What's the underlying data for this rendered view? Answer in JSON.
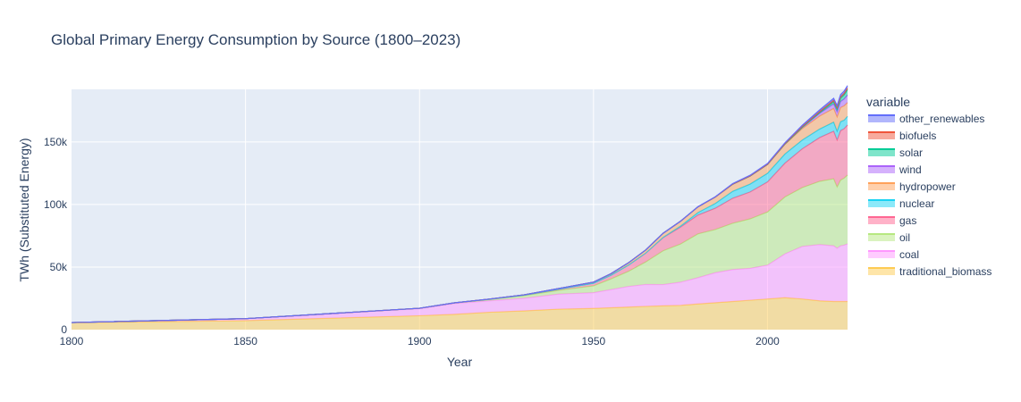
{
  "chart_data": {
    "type": "area",
    "title": "Global Primary Energy Consumption by Source (1800–2023)",
    "xlabel": "Year",
    "ylabel": "TWh (Substituted Energy)",
    "xlim": [
      1800,
      2023
    ],
    "ylim": [
      0,
      192000
    ],
    "x_ticks": [
      1800,
      1850,
      1900,
      1950,
      2000
    ],
    "y_ticks": [
      0,
      50000,
      100000,
      150000
    ],
    "y_tick_labels": [
      "0",
      "50k",
      "100k",
      "150k"
    ],
    "legend_title": "variable",
    "legend_position": "right",
    "stacked": true,
    "x": [
      1800,
      1850,
      1900,
      1910,
      1920,
      1930,
      1940,
      1950,
      1955,
      1960,
      1965,
      1970,
      1975,
      1980,
      1985,
      1990,
      1995,
      2000,
      2005,
      2010,
      2015,
      2019,
      2020,
      2021,
      2022,
      2023
    ],
    "series": [
      {
        "name": "traditional_biomass",
        "color": "#FECB52",
        "values": [
          5556,
          7222,
          11111,
          12222,
          13889,
          15000,
          16389,
          16944,
          17500,
          18000,
          18600,
          19000,
          19400,
          20500,
          21500,
          22500,
          23500,
          24500,
          25500,
          24500,
          23000,
          22500,
          22500,
          22500,
          22500,
          22500
        ]
      },
      {
        "name": "coal",
        "color": "#FF97FF",
        "values": [
          97,
          1569,
          5728,
          8616,
          9120,
          10086,
          11980,
          12603,
          14500,
          16500,
          17500,
          17000,
          18500,
          21000,
          24000,
          25500,
          25500,
          27000,
          35000,
          42000,
          45000,
          44500,
          42500,
          44500,
          45000,
          46000
        ]
      },
      {
        "name": "oil",
        "color": "#B6E880",
        "values": [
          0,
          0,
          181,
          382,
          1026,
          1969,
          3060,
          5444,
          8500,
          12000,
          18000,
          27000,
          30500,
          35000,
          34500,
          37000,
          39500,
          42500,
          45500,
          47000,
          50500,
          53500,
          49000,
          52500,
          53500,
          55000
        ]
      },
      {
        "name": "gas",
        "color": "#FF6692",
        "values": [
          0,
          0,
          64,
          150,
          250,
          500,
          950,
          2092,
          3000,
          5000,
          7000,
          10500,
          13500,
          15000,
          17000,
          20000,
          21500,
          24000,
          27000,
          31000,
          35000,
          38000,
          37500,
          39500,
          39500,
          40000
        ]
      },
      {
        "name": "nuclear",
        "color": "#19D3F3",
        "values": [
          0,
          0,
          0,
          0,
          0,
          0,
          0,
          0,
          0,
          15,
          50,
          200,
          800,
          2000,
          3800,
          5500,
          6300,
          6900,
          7300,
          7000,
          6800,
          7300,
          7000,
          7200,
          6800,
          6900
        ]
      },
      {
        "name": "hydropower",
        "color": "#FFA15A",
        "values": [
          0,
          0,
          10,
          40,
          120,
          250,
          450,
          900,
          1200,
          1800,
          2500,
          3300,
          3900,
          4600,
          5200,
          5700,
          6400,
          7000,
          7700,
          9200,
          10400,
          11000,
          11500,
          11300,
          11500,
          11000
        ]
      },
      {
        "name": "wind",
        "color": "#AB63FA",
        "values": [
          0,
          0,
          0,
          0,
          0,
          0,
          0,
          0,
          0,
          0,
          0,
          0,
          0,
          0,
          0,
          10,
          20,
          80,
          270,
          900,
          2100,
          3600,
          4100,
          4800,
          5400,
          6000
        ]
      },
      {
        "name": "solar",
        "color": "#00CC96",
        "values": [
          0,
          0,
          0,
          0,
          0,
          0,
          0,
          0,
          0,
          0,
          0,
          0,
          0,
          0,
          0,
          0,
          0,
          2,
          10,
          90,
          680,
          1800,
          2200,
          2700,
          3400,
          4500
        ]
      },
      {
        "name": "biofuels",
        "color": "#EF553B",
        "values": [
          0,
          0,
          0,
          0,
          0,
          0,
          0,
          0,
          0,
          0,
          0,
          0,
          0,
          0,
          0,
          100,
          150,
          190,
          350,
          700,
          850,
          1100,
          1050,
          1150,
          1200,
          1300
        ]
      },
      {
        "name": "other_renewables",
        "color": "#636EFA",
        "values": [
          0,
          0,
          0,
          0,
          0,
          0,
          0,
          0,
          0,
          0,
          0,
          30,
          60,
          100,
          200,
          350,
          450,
          550,
          650,
          900,
          1300,
          1500,
          1600,
          1700,
          1750,
          1800
        ]
      }
    ]
  }
}
